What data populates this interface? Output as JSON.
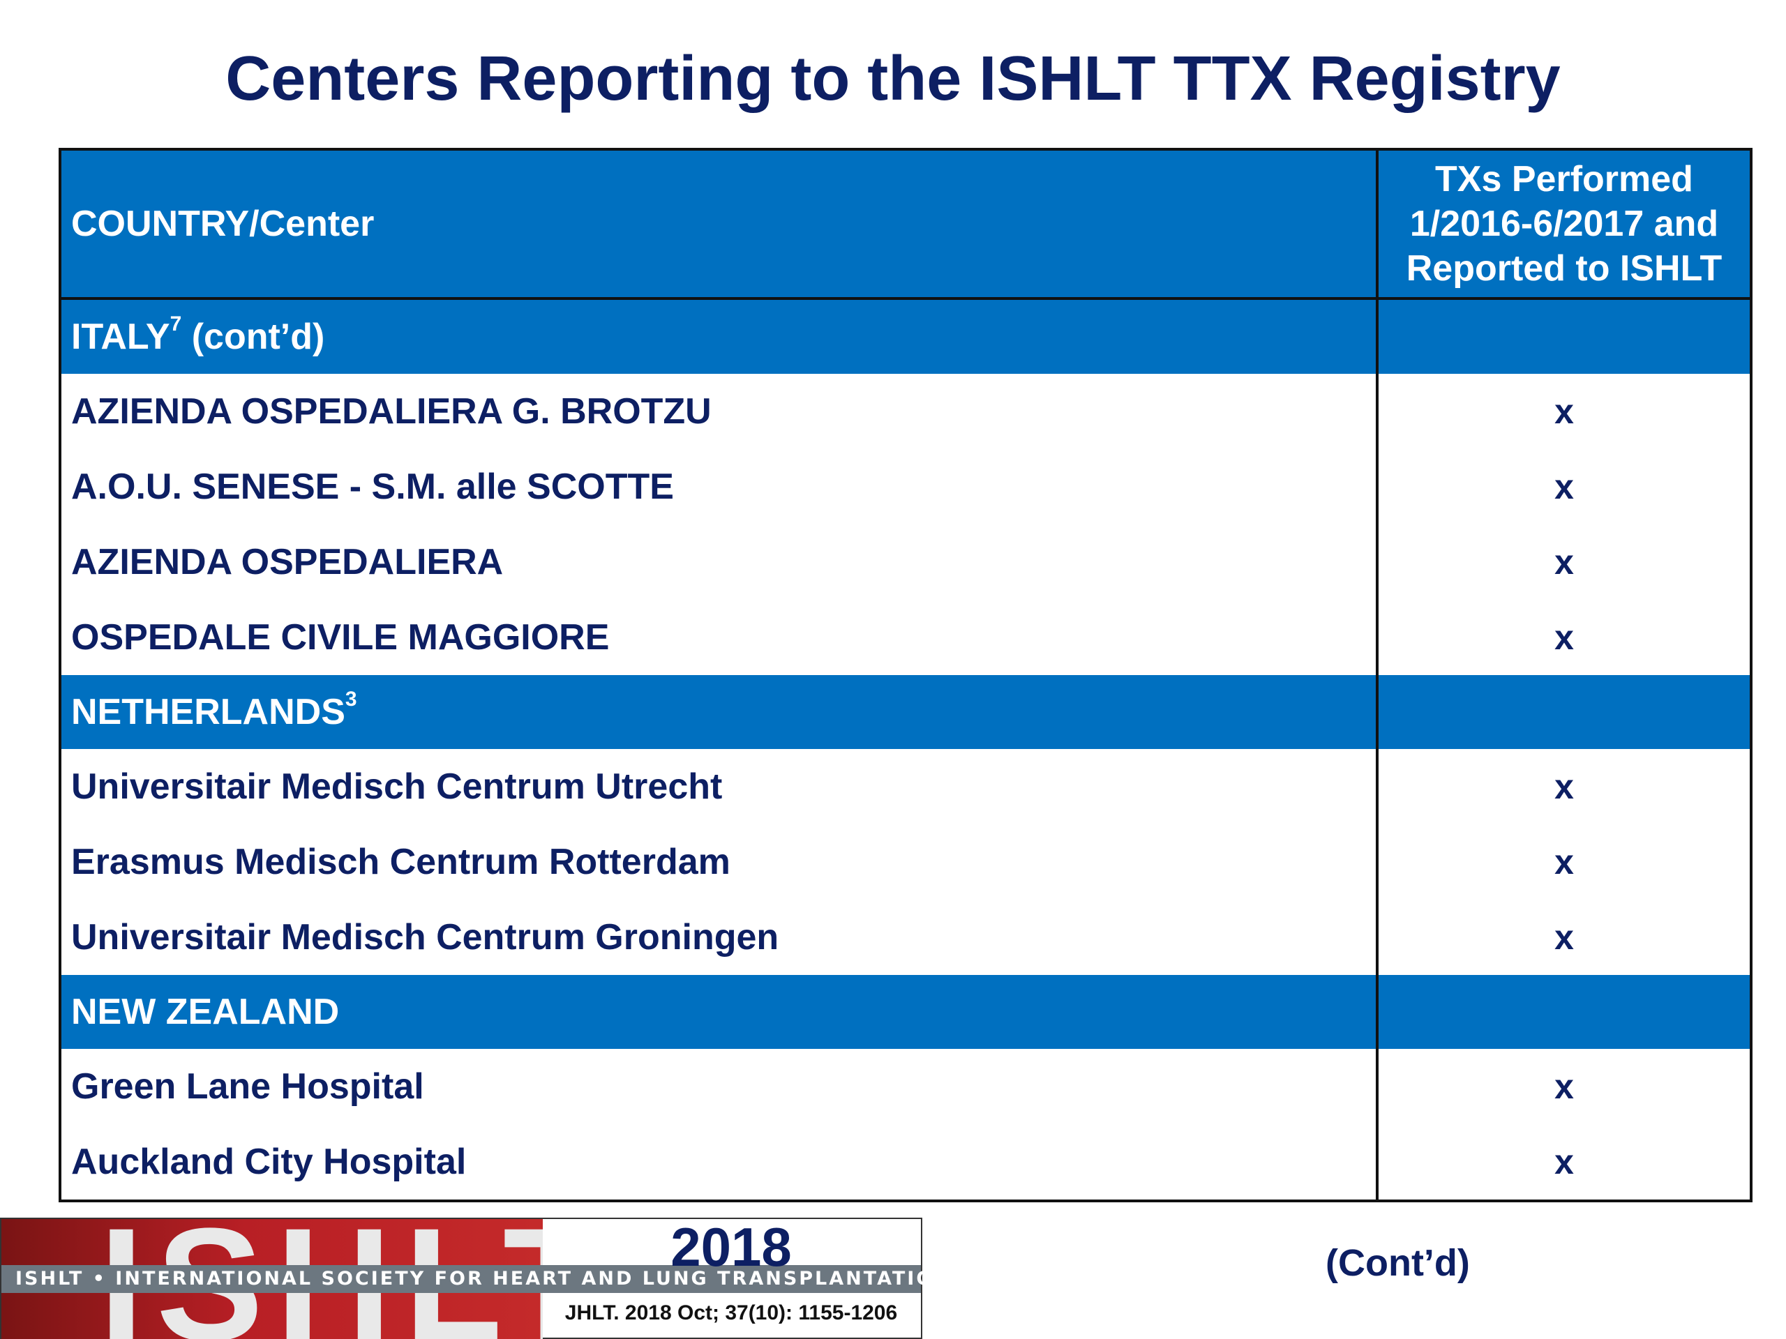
{
  "title": "Centers Reporting to the ISHLT TTX Registry",
  "table": {
    "header": {
      "center": "COUNTRY/Center",
      "tx_lines": [
        "TXs Performed",
        "1/2016-6/2017 and",
        "Reported to ISHLT"
      ]
    },
    "sections": [
      {
        "country": "ITALY",
        "sup": "7",
        "suffix": " (cont’d)",
        "centers": [
          {
            "name": "AZIENDA OSPEDALIERA G. BROTZU",
            "tx": "x"
          },
          {
            "name": "A.O.U. SENESE - S.M. alle SCOTTE",
            "tx": "x"
          },
          {
            "name": "AZIENDA OSPEDALIERA",
            "tx": "x"
          },
          {
            "name": "OSPEDALE CIVILE MAGGIORE",
            "tx": "x"
          }
        ]
      },
      {
        "country": "NETHERLANDS",
        "sup": "3",
        "suffix": "",
        "centers": [
          {
            "name": "Universitair Medisch Centrum Utrecht",
            "tx": "x"
          },
          {
            "name": "Erasmus Medisch Centrum Rotterdam",
            "tx": "x"
          },
          {
            "name": "Universitair Medisch Centrum Groningen",
            "tx": "x"
          }
        ]
      },
      {
        "country": "NEW ZEALAND",
        "sup": "",
        "suffix": "",
        "centers": [
          {
            "name": "Green Lane Hospital",
            "tx": "x"
          },
          {
            "name": "Auckland City Hospital",
            "tx": "x"
          }
        ]
      }
    ]
  },
  "footer": {
    "logo_text": "ISHLT",
    "org_name": "ISHLT • INTERNATIONAL SOCIETY FOR HEART AND LUNG TRANSPLANTATION",
    "year": "2018",
    "citation": "JHLT. 2018 Oct; 37(10): 1155-1206",
    "contd": "(Cont’d)"
  },
  "colors": {
    "header_blue": "#0070c0",
    "title_navy": "#0d1f63",
    "logo_red": "#b81f25"
  }
}
